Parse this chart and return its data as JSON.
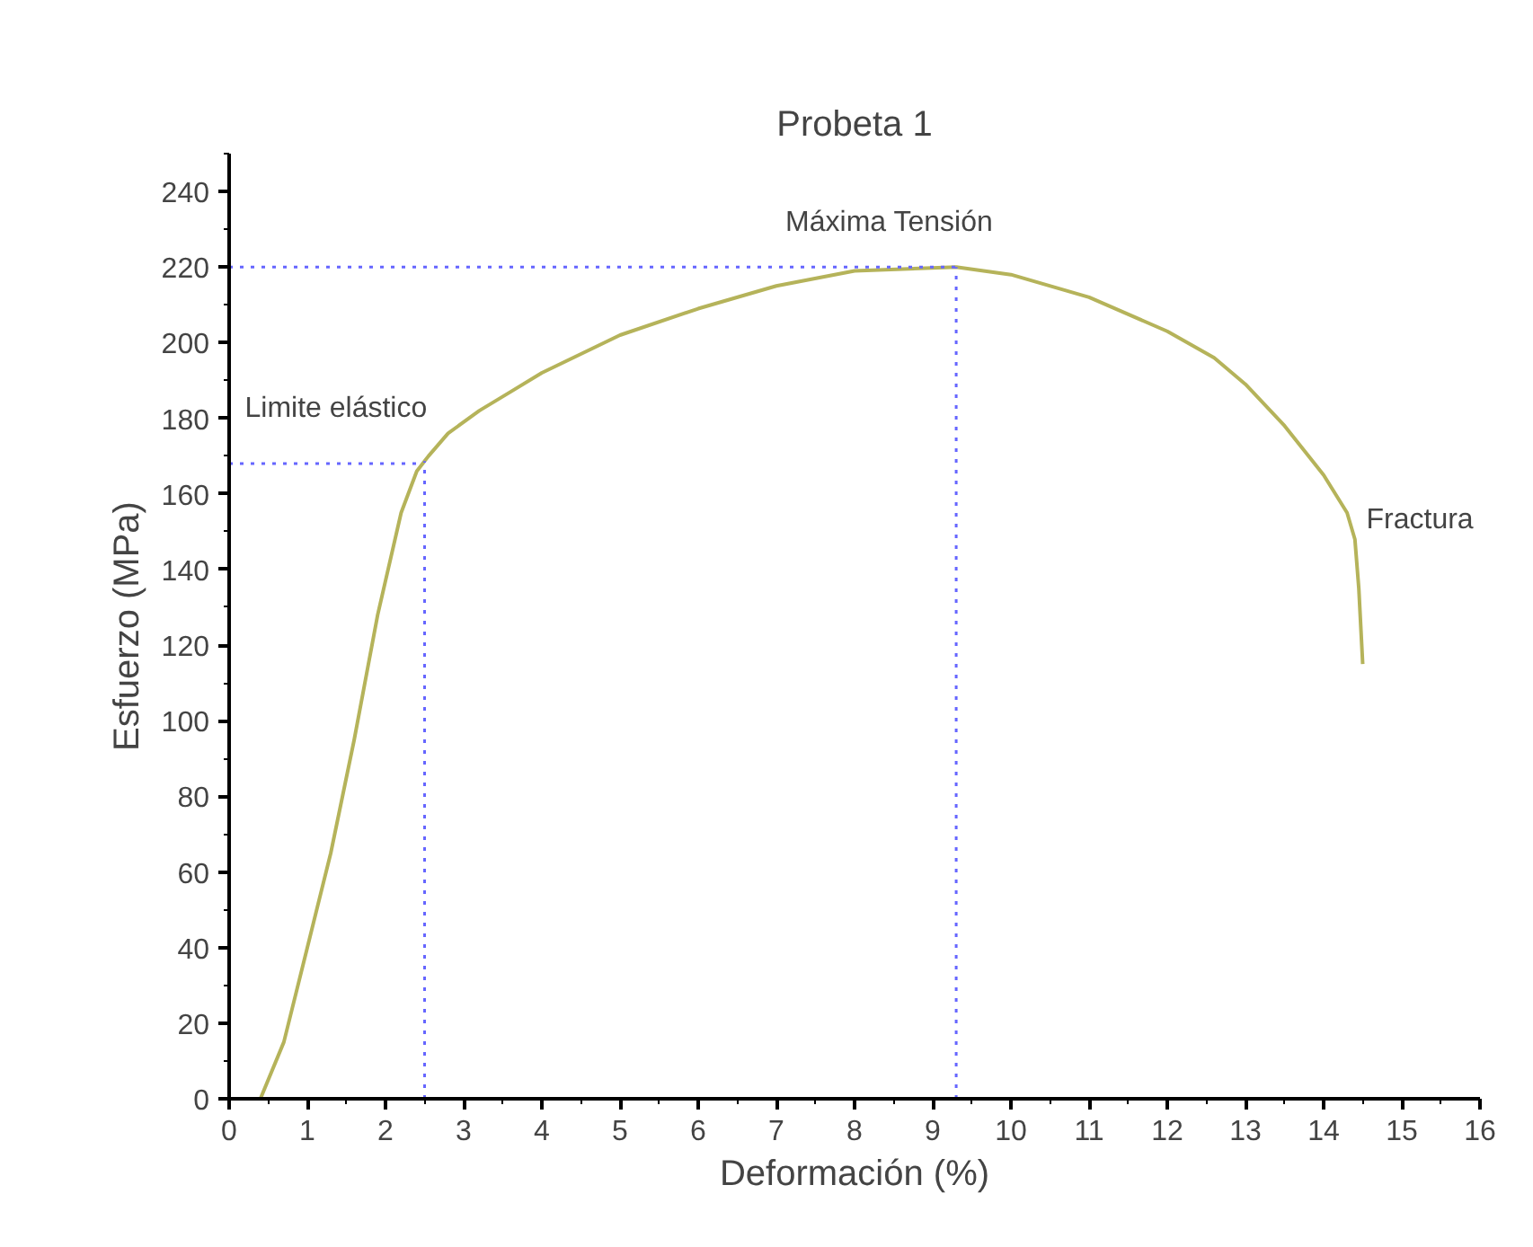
{
  "chart_data": {
    "type": "line",
    "title": "Probeta 1",
    "xlabel": "Deformación (%)",
    "ylabel": "Esfuerzo (MPa)",
    "x": [
      0,
      0.4,
      0.7,
      1.0,
      1.3,
      1.6,
      1.9,
      2.2,
      2.4,
      2.55,
      2.8,
      3.2,
      3.6,
      4,
      5,
      6,
      7,
      8,
      9.3,
      10,
      11,
      12,
      12.6,
      13,
      13.5,
      14,
      14.3,
      14.4,
      14.45,
      14.5
    ],
    "series": [
      {
        "color": "#b5b35a",
        "values": [
          0,
          0,
          15,
          40,
          65,
          95,
          128,
          155,
          166,
          170,
          176,
          182,
          187,
          192,
          202,
          209,
          215,
          219,
          220,
          218,
          212,
          203,
          196,
          189,
          178,
          165,
          155,
          148,
          135,
          115
        ]
      }
    ],
    "xlim": [
      0,
      16
    ],
    "ylim": [
      0,
      250
    ],
    "xticks": [
      0,
      1,
      2,
      3,
      4,
      5,
      6,
      7,
      8,
      9,
      10,
      11,
      12,
      13,
      14,
      15,
      16
    ],
    "yticks": [
      0,
      20,
      40,
      60,
      80,
      100,
      120,
      140,
      160,
      180,
      200,
      220,
      240
    ],
    "ref_lines": [
      {
        "axis": "x",
        "value": 2.5,
        "color": "#6666ff",
        "line_style": "dotted"
      },
      {
        "axis": "y",
        "value": 168,
        "color": "#6666ff",
        "line_style": "dotted"
      },
      {
        "axis": "x",
        "value": 9.3,
        "color": "#6666ff",
        "line_style": "dotted"
      },
      {
        "axis": "y",
        "value": 220,
        "color": "#6666ff",
        "line_style": "dotted"
      }
    ],
    "annotations": [
      {
        "text": "Limite elástico",
        "x": 2.5,
        "y": 168
      },
      {
        "text": "Máxima Tensión",
        "x": 9.3,
        "y": 220
      },
      {
        "text": "Fractura",
        "x": 14.5,
        "y": 148
      }
    ],
    "grid": false,
    "marker": "none",
    "line_style": "solid"
  }
}
